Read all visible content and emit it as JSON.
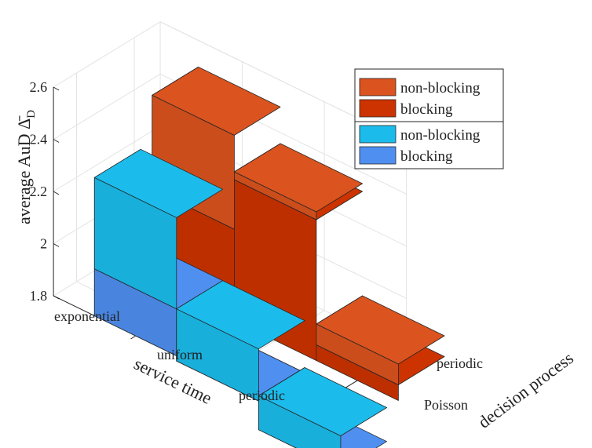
{
  "chart_data": {
    "type": "bar",
    "subtype": "3d-stacked-bar",
    "title": "",
    "zlabel": "average AuD Δ̄",
    "zlabel_subscript": "D",
    "xlabel": "service time",
    "ylabel": "decision process",
    "service_time_categories": [
      "exponential",
      "uniform",
      "periodic"
    ],
    "decision_process_categories": [
      "Poisson",
      "periodic"
    ],
    "zlim": [
      1.8,
      2.6
    ],
    "zticks": [
      "1.8",
      "2",
      "2.2",
      "2.4",
      "2.6"
    ],
    "grid": true,
    "legend_position": "top-right",
    "series": [
      {
        "decision_process": "Poisson",
        "colors": {
          "blocking": "#4f8ff0",
          "non-blocking": "#1bbcec"
        },
        "blocking": [
          1.98,
          1.78,
          1.67
        ],
        "non_blocking_total": [
          2.33,
          1.98,
          1.8
        ]
      },
      {
        "decision_process": "periodic",
        "colors": {
          "blocking": "#cc3300",
          "non-blocking": "#db531e"
        },
        "blocking": [
          2.15,
          2.34,
          1.86
        ],
        "non_blocking_total": [
          2.51,
          2.37,
          1.94
        ]
      }
    ],
    "legend": [
      {
        "label": "non-blocking",
        "color": "#db531e"
      },
      {
        "label": "blocking",
        "color": "#cc3300"
      },
      {
        "label": "non-blocking",
        "color": "#1bbcec"
      },
      {
        "label": "blocking",
        "color": "#4f8ff0"
      }
    ]
  }
}
